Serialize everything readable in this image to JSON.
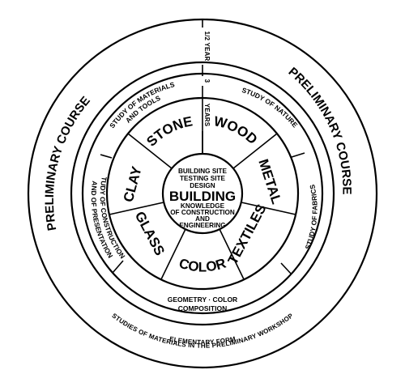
{
  "outer_ring": {
    "left": "PRELIMINARY COURSE",
    "right": "PRELIMINARY COURSE",
    "bottom_line1": "ELEMENTARY FORM",
    "bottom_line2": "STUDIES OF MATERIALS IN THE PRELIMINARY WORKSHOP"
  },
  "duration": {
    "half_year": "1/2 YEAR",
    "years_number": "3",
    "years_word": "YEARS"
  },
  "study_ring": {
    "materials_line1": "STUDY OF MATERIALS",
    "materials_line2": "AND TOOLS",
    "nature": "STUDY OF NATURE",
    "constructions_line1": "STUDY OF CONSTRUCTIONS",
    "constructions_line2": "AND OF PRESENTATION",
    "fabrics": "STUDY OF FABRICS",
    "composition_line1": "GEOMETRY · COLOR",
    "composition_line2": "COMPOSITION"
  },
  "materials": {
    "stone": "STONE",
    "wood": "WOOD",
    "metal": "METAL",
    "textiles": "TEXTILES",
    "color": "COLOR",
    "glass": "GLASS",
    "clay": "CLAY"
  },
  "center": {
    "line1": "BUILDING SITE",
    "line2": "TESTING SITE",
    "line3": "DESIGN",
    "title": "BUILDING",
    "line4": "KNOWLEDGE",
    "line5": "OF CONSTRUCTION",
    "line6": "AND",
    "line7": "ENGINEERING"
  }
}
